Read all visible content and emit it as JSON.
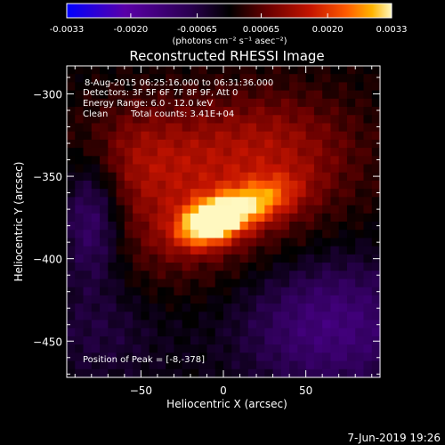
{
  "chart_data": {
    "type": "heatmap",
    "title": "Reconstructed RHESSI Image",
    "xlabel": "Heliocentric X (arcsec)",
    "ylabel": "Heliocentric Y (arcsec)",
    "xlim": [
      -95,
      95
    ],
    "ylim": [
      -472,
      -283
    ],
    "x_ticks": [
      -50,
      0,
      50
    ],
    "y_ticks": [
      -300,
      -350,
      -400,
      -450
    ],
    "colorbar": {
      "label": "(photons cm⁻² s⁻¹ asec⁻²)",
      "range": [
        -0.0033,
        0.0033
      ],
      "ticks": [
        {
          "value": -0.0033,
          "label": "-0.0033"
        },
        {
          "value": -0.002,
          "label": "-0.0020"
        },
        {
          "value": -0.00065,
          "label": "-0.00065"
        },
        {
          "value": 0.00065,
          "label": "0.00065"
        },
        {
          "value": 0.002,
          "label": "0.0020"
        },
        {
          "value": 0.0033,
          "label": "0.0033"
        }
      ],
      "colors": [
        "#0000ff",
        "#5a00a8",
        "#2a0050",
        "#000000",
        "#6a0000",
        "#c41400",
        "#ff5a00",
        "#ffb400",
        "#fff8c0"
      ]
    },
    "annotations": [
      "8-Aug-2015 06:25:16.000 to 06:31:36.000",
      "Detectors: 3F 5F 6F 7F 8F 9F, Att 0",
      "Energy Range: 6.0 - 12.0 keV",
      "Clean",
      "Total counts: 3.41E+04"
    ],
    "peak_label": "Position of Peak = [-8,-378]",
    "peak": {
      "x": -8,
      "y": -378
    },
    "date_stamp": "7-Jun-2019 19:26",
    "sources": [
      {
        "x": -8,
        "y": -378,
        "sx": 14,
        "sy": 9,
        "amp": 0.0033,
        "theta": 0.35
      },
      {
        "x": 20,
        "y": -366,
        "sx": 18,
        "sy": 9,
        "amp": 0.0018,
        "theta": 0.35
      },
      {
        "x": -10,
        "y": -362,
        "sx": 58,
        "sy": 36,
        "amp": 0.0012,
        "theta": 0.25
      },
      {
        "x": -55,
        "y": -335,
        "sx": 28,
        "sy": 22,
        "amp": 0.0007,
        "theta": 0
      },
      {
        "x": 30,
        "y": -330,
        "sx": 35,
        "sy": 22,
        "amp": 0.0006,
        "theta": 0
      },
      {
        "x": -80,
        "y": -375,
        "sx": 14,
        "sy": 28,
        "amp": -0.0016,
        "theta": 0
      },
      {
        "x": 65,
        "y": -440,
        "sx": 40,
        "sy": 30,
        "amp": -0.0014,
        "theta": 0
      },
      {
        "x": -75,
        "y": -445,
        "sx": 30,
        "sy": 25,
        "amp": -0.0006,
        "theta": 0
      }
    ]
  }
}
